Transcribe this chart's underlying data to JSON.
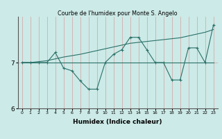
{
  "title": "Courbe de l'humidex pour Monte S. Angelo",
  "xlabel": "Humidex (Indice chaleur)",
  "bg_color": "#cceae7",
  "line_color": "#2a7068",
  "x_data": [
    0,
    1,
    2,
    3,
    4,
    5,
    6,
    7,
    8,
    9,
    10,
    11,
    12,
    13,
    14,
    15,
    16,
    17,
    18,
    19,
    20,
    21,
    22,
    23
  ],
  "y_main": [
    7.0,
    7.0,
    7.0,
    7.0,
    7.22,
    6.88,
    6.82,
    6.6,
    6.42,
    6.42,
    7.0,
    7.18,
    7.28,
    7.55,
    7.55,
    7.28,
    7.0,
    7.0,
    6.62,
    6.62,
    7.32,
    7.32,
    7.0,
    7.82
  ],
  "y_trend1": [
    7.0,
    7.0,
    7.0,
    7.0,
    7.0,
    7.0,
    7.0,
    7.0,
    7.0,
    7.0,
    7.0,
    7.0,
    7.0,
    7.0,
    7.0,
    7.0,
    7.0,
    7.0,
    7.0,
    7.0,
    7.0,
    7.0,
    7.0,
    7.0
  ],
  "y_trend2": [
    7.0,
    7.0,
    7.02,
    7.04,
    7.08,
    7.12,
    7.15,
    7.18,
    7.22,
    7.26,
    7.3,
    7.34,
    7.38,
    7.42,
    7.44,
    7.46,
    7.48,
    7.5,
    7.52,
    7.54,
    7.58,
    7.62,
    7.66,
    7.72
  ],
  "ylim": [
    6.2,
    8.0
  ],
  "xlim": [
    -0.5,
    23.5
  ],
  "yticks": [
    6,
    7
  ],
  "xticks": [
    0,
    1,
    2,
    3,
    4,
    5,
    6,
    7,
    8,
    9,
    10,
    11,
    12,
    13,
    14,
    15,
    16,
    17,
    18,
    19,
    20,
    21,
    22,
    23
  ],
  "marker_size": 3,
  "line_width": 0.8
}
